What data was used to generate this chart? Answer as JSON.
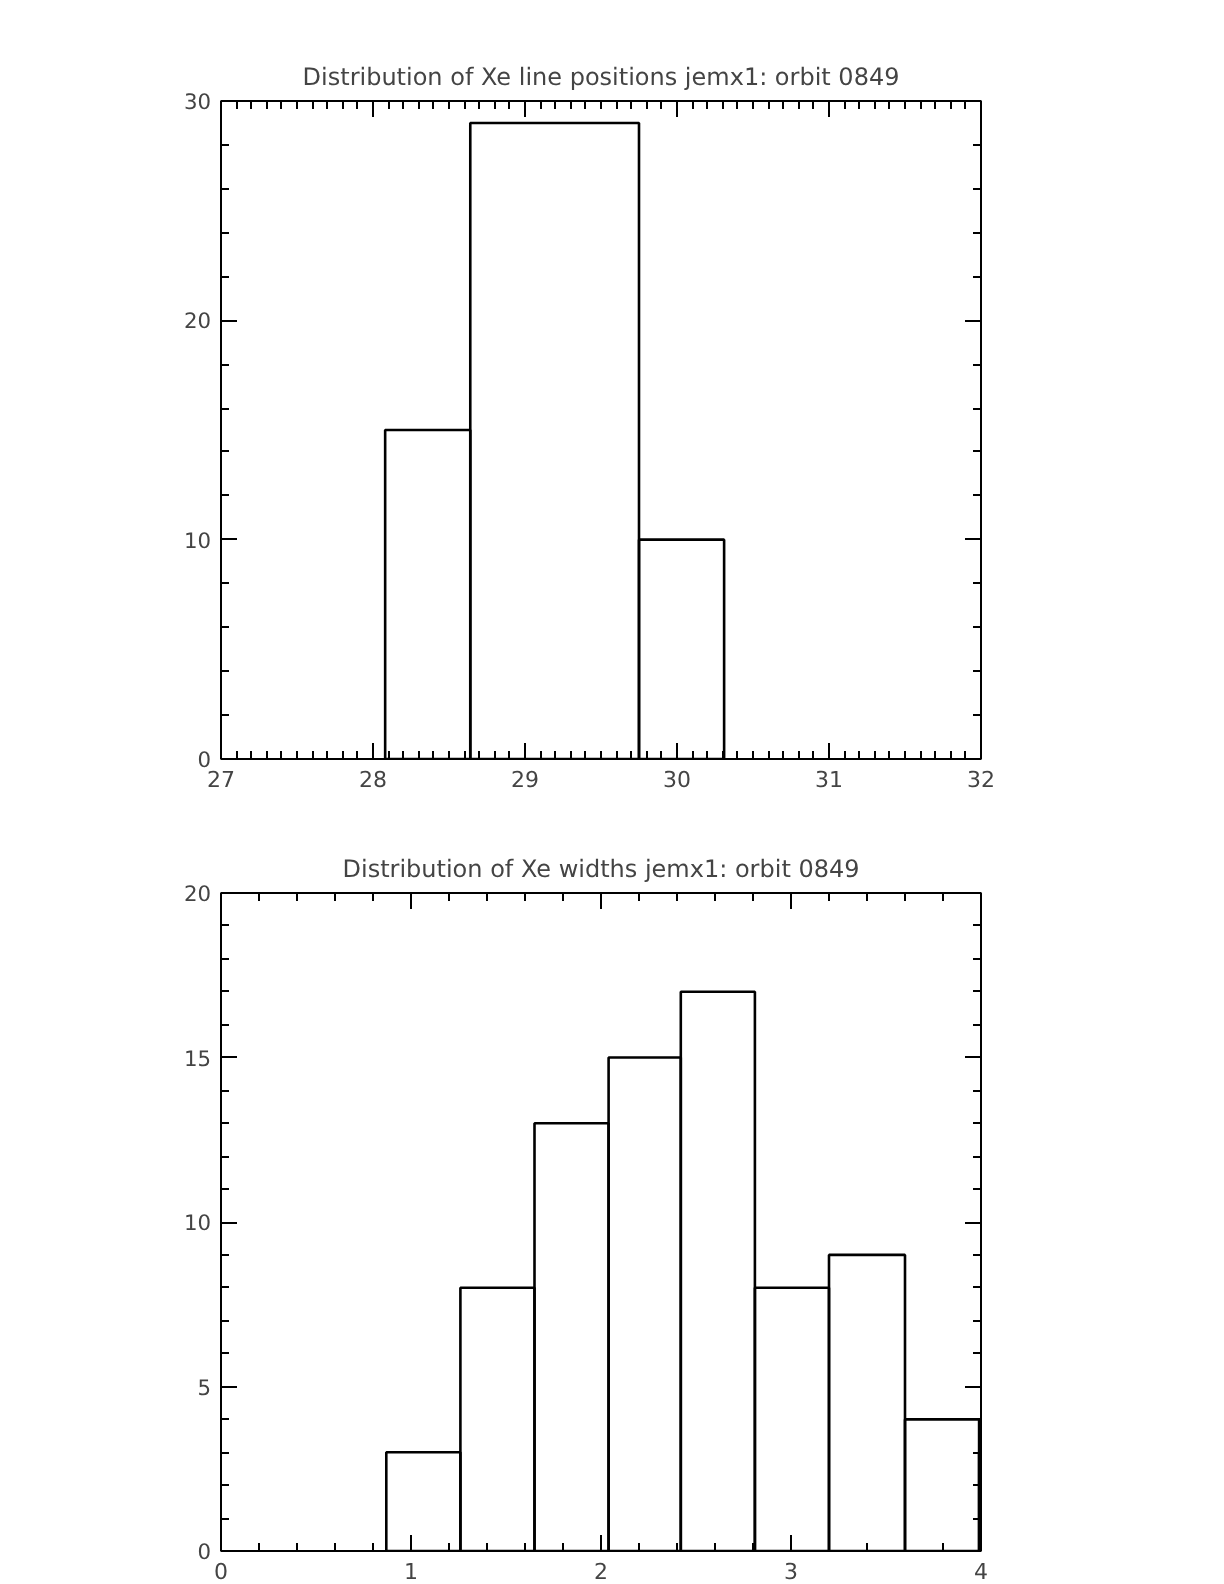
{
  "chart_data": [
    {
      "type": "histogram",
      "title": "Distribution of Xe line positions jemx1: orbit 0849",
      "bins": [
        28.08,
        28.64,
        29.75,
        30.31
      ],
      "values": [
        15,
        29,
        10
      ],
      "color": "#000000",
      "xlim": [
        27,
        32
      ],
      "xticks": [
        27,
        28,
        29,
        30,
        31,
        32
      ],
      "ylim": [
        0,
        30
      ],
      "yticks": [
        0,
        10,
        20,
        30
      ],
      "grid": false
    },
    {
      "type": "histogram",
      "title": "Distribution of Xe widths jemx1: orbit 0849",
      "bins": [
        0.87,
        1.26,
        1.65,
        2.04,
        2.42,
        2.81,
        3.2,
        3.6,
        3.99,
        4.0
      ],
      "values": [
        3,
        8,
        13,
        15,
        17,
        8,
        9,
        4,
        3
      ],
      "color": "#000000",
      "xlim": [
        0,
        4
      ],
      "xticks": [
        0,
        1,
        2,
        3,
        4
      ],
      "ylim": [
        0,
        20
      ],
      "yticks": [
        0,
        5,
        10,
        15,
        20
      ],
      "grid": false
    }
  ]
}
